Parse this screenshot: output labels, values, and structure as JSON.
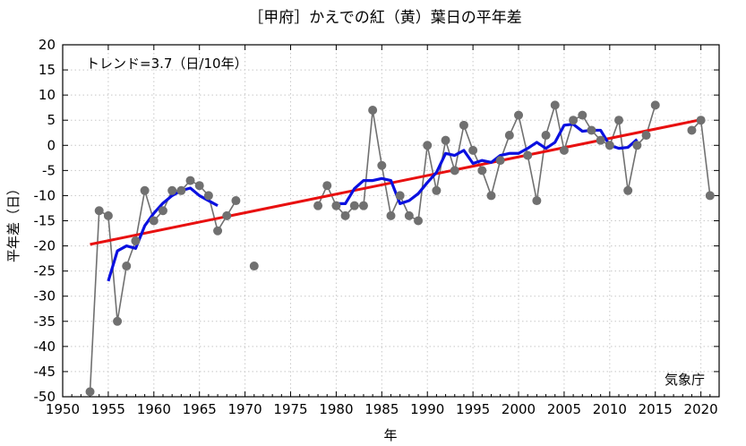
{
  "chart_data": {
    "type": "line",
    "title": "［甲府］かえでの紅（黄）葉日の平年差",
    "xlabel": "年",
    "ylabel": "平年差（日）",
    "xlim": [
      1950,
      2022
    ],
    "ylim": [
      -50,
      20
    ],
    "xticks": [
      1950,
      1955,
      1960,
      1965,
      1970,
      1975,
      1980,
      1985,
      1990,
      1995,
      2000,
      2005,
      2010,
      2015,
      2020
    ],
    "yticks": [
      -50,
      -45,
      -40,
      -35,
      -30,
      -25,
      -20,
      -15,
      -10,
      -5,
      0,
      5,
      10,
      15,
      20
    ],
    "grid": true,
    "trend_text": "トレンド=3.7（日/10年）",
    "source_text": "気象庁",
    "series": [
      {
        "kind": "annual",
        "color": "#707070",
        "segments": [
          [
            [
              1953,
              -49
            ],
            [
              1954,
              -13
            ],
            [
              1955,
              -14
            ],
            [
              1956,
              -35
            ],
            [
              1957,
              -24
            ],
            [
              1958,
              -19
            ],
            [
              1959,
              -9
            ],
            [
              1960,
              -15
            ],
            [
              1961,
              -13
            ],
            [
              1962,
              -9
            ],
            [
              1963,
              -9
            ],
            [
              1964,
              -7
            ],
            [
              1965,
              -8
            ],
            [
              1966,
              -10
            ],
            [
              1967,
              -17
            ],
            [
              1968,
              -14
            ],
            [
              1969,
              -11
            ]
          ],
          [
            [
              1971,
              -24
            ]
          ],
          [
            [
              1978,
              -12
            ],
            [
              1979,
              -8
            ],
            [
              1980,
              -12
            ],
            [
              1981,
              -14
            ],
            [
              1982,
              -12
            ],
            [
              1983,
              -12
            ],
            [
              1984,
              7
            ],
            [
              1985,
              -4
            ],
            [
              1986,
              -14
            ],
            [
              1987,
              -10
            ],
            [
              1988,
              -14
            ],
            [
              1989,
              -15
            ],
            [
              1990,
              0
            ],
            [
              1991,
              -9
            ],
            [
              1992,
              1
            ],
            [
              1993,
              -5
            ],
            [
              1994,
              4
            ],
            [
              1995,
              -1
            ],
            [
              1996,
              -5
            ],
            [
              1997,
              -10
            ],
            [
              1998,
              -3
            ],
            [
              1999,
              2
            ],
            [
              2000,
              6
            ],
            [
              2001,
              -2
            ],
            [
              2002,
              -11
            ],
            [
              2003,
              2
            ],
            [
              2004,
              8
            ],
            [
              2005,
              -1
            ],
            [
              2006,
              5
            ],
            [
              2007,
              6
            ],
            [
              2008,
              3
            ],
            [
              2009,
              1
            ],
            [
              2010,
              0
            ],
            [
              2011,
              5
            ],
            [
              2012,
              -9
            ],
            [
              2013,
              0
            ],
            [
              2014,
              2
            ],
            [
              2015,
              8
            ]
          ],
          [
            [
              2019,
              3
            ],
            [
              2020,
              5
            ],
            [
              2021,
              -10
            ]
          ]
        ]
      },
      {
        "kind": "moving_average_5yr",
        "color": "#0a10e0",
        "segments": [
          [
            [
              1955,
              -27
            ],
            [
              1956,
              -21
            ],
            [
              1957,
              -20
            ],
            [
              1958,
              -20.5
            ],
            [
              1959,
              -16
            ],
            [
              1960,
              -13.5
            ],
            [
              1961,
              -11.5
            ],
            [
              1962,
              -10
            ],
            [
              1963,
              -9
            ],
            [
              1964,
              -8.5
            ],
            [
              1965,
              -10
            ],
            [
              1966,
              -11
            ],
            [
              1967,
              -12
            ]
          ],
          [
            [
              1980,
              -11.6
            ],
            [
              1981,
              -11.6
            ],
            [
              1982,
              -8.6
            ],
            [
              1983,
              -7
            ],
            [
              1984,
              -7
            ],
            [
              1985,
              -6.6
            ],
            [
              1986,
              -7
            ],
            [
              1987,
              -11.6
            ],
            [
              1988,
              -11
            ],
            [
              1989,
              -9.6
            ],
            [
              1990,
              -7.4
            ],
            [
              1991,
              -5.4
            ],
            [
              1992,
              -1.6
            ],
            [
              1993,
              -2
            ],
            [
              1994,
              -1
            ],
            [
              1995,
              -3.6
            ],
            [
              1996,
              -3
            ],
            [
              1997,
              -3.4
            ],
            [
              1998,
              -2
            ],
            [
              1999,
              -1.6
            ],
            [
              2000,
              -1.6
            ],
            [
              2001,
              -0.6
            ],
            [
              2002,
              0.6
            ],
            [
              2003,
              -0.6
            ],
            [
              2004,
              0.6
            ],
            [
              2005,
              4
            ],
            [
              2006,
              4.2
            ],
            [
              2007,
              2.8
            ],
            [
              2008,
              3
            ],
            [
              2009,
              3
            ],
            [
              2010,
              0
            ],
            [
              2011,
              -0.6
            ],
            [
              2012,
              -0.4
            ],
            [
              2013,
              1.2
            ]
          ]
        ]
      },
      {
        "kind": "trend",
        "color": "#e81010",
        "segments": [
          [
            [
              1953,
              -19.7
            ],
            [
              2020,
              5.1
            ]
          ]
        ]
      }
    ]
  }
}
